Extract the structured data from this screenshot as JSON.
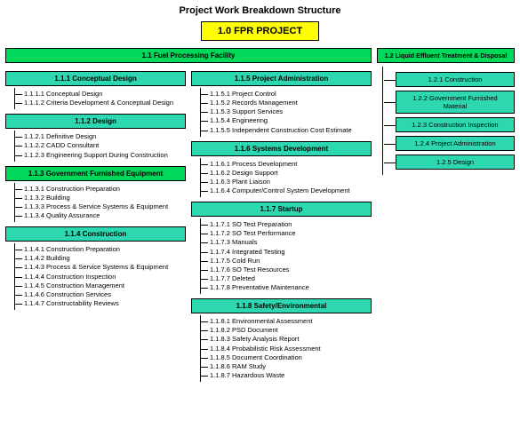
{
  "title": "Project Work Breakdown Structure",
  "root": "1.0  FPR PROJECT",
  "branch1": {
    "label": "1.1  Fuel Processing Facility",
    "col1": [
      {
        "label": "1.1.1  Conceptual Design",
        "items": [
          "1.1.1.1  Conceptual Design",
          "1.1.1.2  Criteria Development & Conceptual Design"
        ]
      },
      {
        "label": "1.1.2  Design",
        "items": [
          "1.1.2.1  Definitive Design",
          "1.1.2.2  CADD Consultant",
          "1.1.2.3  Engineering Support During Construction"
        ]
      },
      {
        "label": "1.1.3  Government Furnished Equipment",
        "items": [
          "1.1.3.1  Construction Preparation",
          "1.1.3.2  Building",
          "1.1.3.3  Process & Service Systems & Equipment",
          "1.1.3.4  Quality Assurance"
        ]
      },
      {
        "label": "1.1.4  Construction",
        "items": [
          "1.1.4.1  Construction Preparation",
          "1.1.4.2  Building",
          "1.1.4.3  Process & Service Systems & Equipment",
          "1.1.4.4  Construction Inspection",
          "1.1.4.5  Construction Management",
          "1.1.4.6  Construction Services",
          "1.1.4.7  Constructability Reviews"
        ]
      }
    ],
    "col2": [
      {
        "label": "1.1.5  Project Administration",
        "items": [
          "1.1.5.1  Project Control",
          "1.1.5.2  Records Management",
          "1.1.5.3  Support Services",
          "1.1.5.4  Engineering",
          "1.1.5.5  Independent Construction Cost Estimate"
        ]
      },
      {
        "label": "1.1.6  Systems Development",
        "items": [
          "1.1.6.1  Process Development",
          "1.1.6.2  Design Support",
          "1.1.6.3  Plant Liaison",
          "1.1.6.4  Computer/Control System Development"
        ]
      },
      {
        "label": "1.1.7  Startup",
        "items": [
          "1.1.7.1  SO Test Preparation",
          "1.1.7.2  SO Test Performance",
          "1.1.7.3  Manuals",
          "1.1.7.4  Integrated Testing",
          "1.1.7.5  Cold Run",
          "1.1.7.6  SO Test Resources",
          "1.1.7.7  Deleted",
          "1.1.7.8  Preventative Maintenance"
        ]
      },
      {
        "label": "1.1.8  Safety/Environmental",
        "items": [
          "1.1.8.1  Environmental Assessment",
          "1.1.8.2  PSD Document",
          "1.1.8.3  Safety Analysis Report",
          "1.1.8.4  Probabilistic Risk Assessment",
          "1.1.8.5  Document Coordination",
          "1.1.8.6  RAM Study",
          "1.1.8.7  Hazardous Waste"
        ]
      }
    ]
  },
  "branch2": {
    "label": "1.2  Liquid Effluent Treatment & Disposal",
    "items": [
      "1.2.1  Construction",
      "1.2.2  Government Furnished Material",
      "1.2.3  Construction Inspection",
      "1.2.4  Project Administration",
      "1.2.5  Design"
    ]
  },
  "colors": {
    "root_bg": "#ffff00",
    "branch_bg": "#00d85a",
    "sub_bg": "#2dd8b0",
    "border": "#000000",
    "text": "#000000"
  }
}
